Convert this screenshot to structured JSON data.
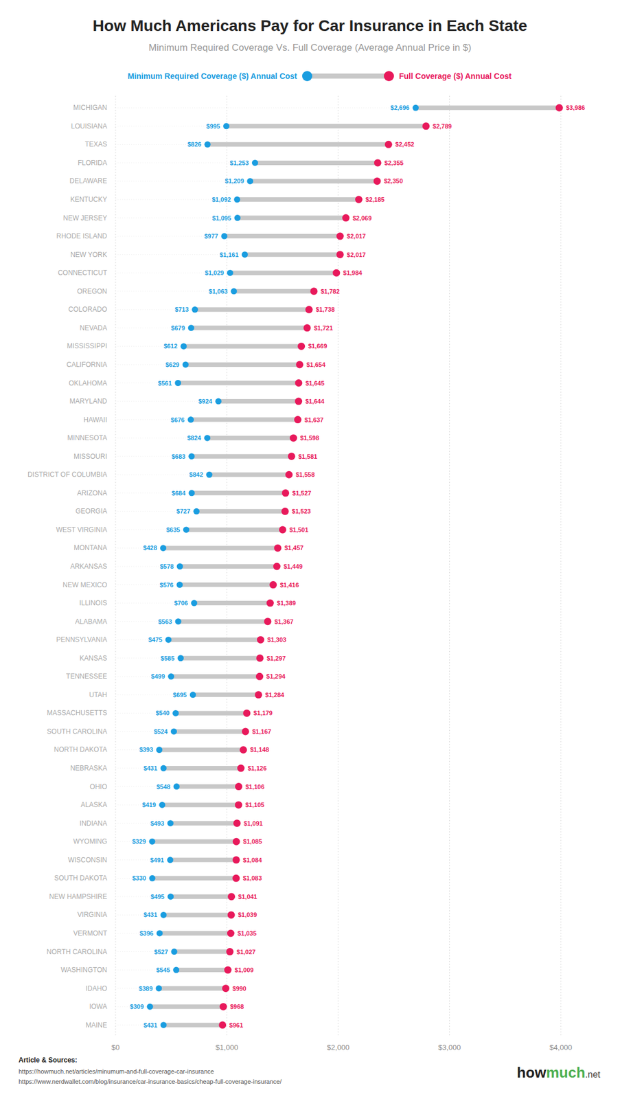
{
  "chart_data": {
    "type": "dumbbell",
    "title": "How Much Americans Pay for Car Insurance in Each State",
    "subtitle": "Minimum Required Coverage Vs. Full Coverage (Average Annual Price in $)",
    "categories": [
      "MICHIGAN",
      "LOUISIANA",
      "TEXAS",
      "FLORIDA",
      "DELAWARE",
      "KENTUCKY",
      "NEW JERSEY",
      "RHODE ISLAND",
      "NEW YORK",
      "CONNECTICUT",
      "OREGON",
      "COLORADO",
      "NEVADA",
      "MISSISSIPPI",
      "CALIFORNIA",
      "OKLAHOMA",
      "MARYLAND",
      "HAWAII",
      "MINNESOTA",
      "MISSOURI",
      "DISTRICT OF COLUMBIA",
      "ARIZONA",
      "GEORGIA",
      "WEST VIRGINIA",
      "MONTANA",
      "ARKANSAS",
      "NEW MEXICO",
      "ILLINOIS",
      "ALABAMA",
      "PENNSYLVANIA",
      "KANSAS",
      "TENNESSEE",
      "UTAH",
      "MASSACHUSETTS",
      "SOUTH CAROLINA",
      "NORTH DAKOTA",
      "NEBRASKA",
      "OHIO",
      "ALASKA",
      "INDIANA",
      "WYOMING",
      "WISCONSIN",
      "SOUTH DAKOTA",
      "NEW HAMPSHIRE",
      "VIRGINIA",
      "VERMONT",
      "NORTH CAROLINA",
      "WASHINGTON",
      "IDAHO",
      "IOWA",
      "MAINE"
    ],
    "orientation": "horizontal",
    "color": "#c8c8c8",
    "series": [
      {
        "name": "Minimum Required Coverage ($) Annual Cost",
        "color": "#1a9de0",
        "values": [
          2696,
          995,
          826,
          1253,
          1209,
          1092,
          1095,
          977,
          1161,
          1029,
          1063,
          713,
          679,
          612,
          629,
          561,
          924,
          676,
          824,
          683,
          842,
          684,
          727,
          635,
          428,
          578,
          576,
          706,
          563,
          475,
          585,
          499,
          695,
          540,
          524,
          393,
          431,
          548,
          419,
          493,
          329,
          491,
          330,
          495,
          431,
          396,
          527,
          545,
          389,
          309,
          431
        ],
        "value_labels": [
          "$2,696",
          "$995",
          "$826",
          "$1,253",
          "$1,209",
          "$1,092",
          "$1,095",
          "$977",
          "$1,161",
          "$1,029",
          "$1,063",
          "$713",
          "$679",
          "$612",
          "$629",
          "$561",
          "$924",
          "$676",
          "$824",
          "$683",
          "$842",
          "$684",
          "$727",
          "$635",
          "$428",
          "$578",
          "$576",
          "$706",
          "$563",
          "$475",
          "$585",
          "$499",
          "$695",
          "$540",
          "$524",
          "$393",
          "$431",
          "$548",
          "$419",
          "$493",
          "$329",
          "$491",
          "$330",
          "$495",
          "$431",
          "$396",
          "$527",
          "$545",
          "$389",
          "$309",
          "$431"
        ]
      },
      {
        "name": "Full Coverage ($) Annual Cost",
        "color": "#e8195b",
        "values": [
          3986,
          2789,
          2452,
          2355,
          2350,
          2185,
          2069,
          2017,
          2017,
          1984,
          1782,
          1738,
          1721,
          1669,
          1654,
          1645,
          1644,
          1637,
          1598,
          1581,
          1558,
          1527,
          1523,
          1501,
          1457,
          1449,
          1416,
          1389,
          1367,
          1303,
          1297,
          1294,
          1284,
          1179,
          1167,
          1148,
          1126,
          1106,
          1105,
          1091,
          1085,
          1084,
          1083,
          1041,
          1039,
          1035,
          1027,
          1009,
          990,
          968,
          961
        ],
        "value_labels": [
          "$3,986",
          "$2,789",
          "$2,452",
          "$2,355",
          "$2,350",
          "$2,185",
          "$2,069",
          "$2,017",
          "$2,017",
          "$1,984",
          "$1,782",
          "$1,738",
          "$1,721",
          "$1,669",
          "$1,654",
          "$1,645",
          "$1,644",
          "$1,637",
          "$1,598",
          "$1,581",
          "$1,558",
          "$1,527",
          "$1,523",
          "$1,501",
          "$1,457",
          "$1,449",
          "$1,416",
          "$1,389",
          "$1,367",
          "$1,303",
          "$1,297",
          "$1,294",
          "$1,284",
          "$1,179",
          "$1,167",
          "$1,148",
          "$1,126",
          "$1,106",
          "$1,105",
          "$1,091",
          "$1,085",
          "$1,084",
          "$1,083",
          "$1,041",
          "$1,039",
          "$1,035",
          "$1,027",
          "$1,009",
          "$990",
          "$968",
          "$961"
        ]
      }
    ],
    "xlim": [
      0,
      4000
    ],
    "xticks": [
      {
        "value": 0,
        "label": "$0"
      },
      {
        "value": 1000,
        "label": "$1,000"
      },
      {
        "value": 2000,
        "label": "$2,000"
      },
      {
        "value": 3000,
        "label": "$3,000"
      },
      {
        "value": 4000,
        "label": "$4,000"
      }
    ],
    "grid": true,
    "data_labels": true,
    "annotations": [
      "Article & Sources:",
      "https://howmuch.net/articles/minumum-and-full-coverage-car-insurance",
      "https://www.nerdwallet.com/blog/insurance/car-insurance-basics/cheap-full-coverage-insurance/",
      "how",
      "much",
      ".net"
    ]
  }
}
